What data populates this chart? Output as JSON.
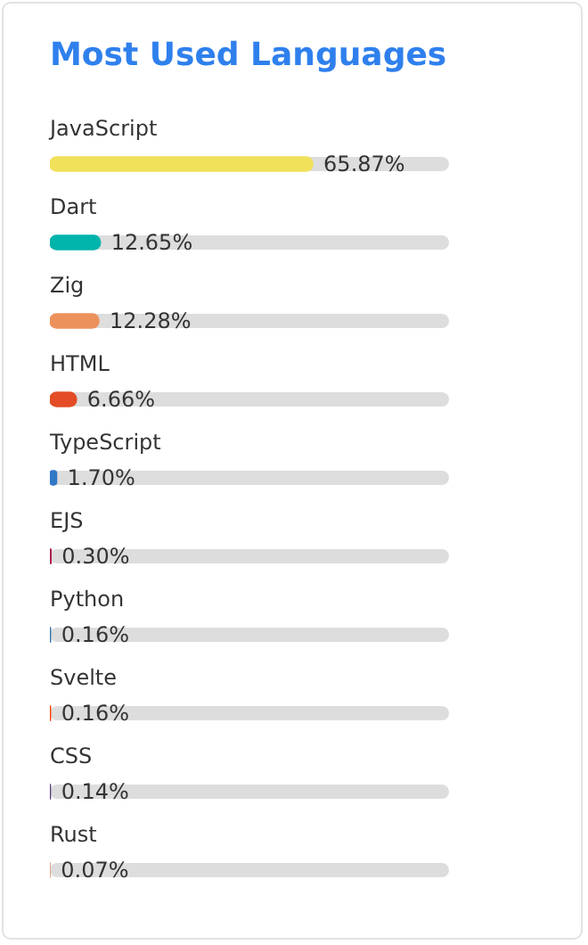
{
  "chart_data": {
    "type": "bar",
    "orientation": "horizontal",
    "title": "Most Used Languages",
    "categories": [
      "JavaScript",
      "Dart",
      "Zig",
      "HTML",
      "TypeScript",
      "EJS",
      "Python",
      "Svelte",
      "CSS",
      "Rust"
    ],
    "values": [
      65.87,
      12.65,
      12.28,
      6.66,
      1.7,
      0.3,
      0.16,
      0.16,
      0.14,
      0.07
    ],
    "value_labels": [
      "65.87%",
      "12.65%",
      "12.28%",
      "6.66%",
      "1.70%",
      "0.30%",
      "0.16%",
      "0.16%",
      "0.14%",
      "0.07%"
    ],
    "colors": [
      "#f1e05a",
      "#00b4ab",
      "#ec915c",
      "#e34c26",
      "#3178c6",
      "#a91e50",
      "#3572a5",
      "#ff3e00",
      "#563d7c",
      "#dea584"
    ],
    "xlim": [
      0,
      100
    ],
    "tick_labels": "y",
    "legend": false
  }
}
